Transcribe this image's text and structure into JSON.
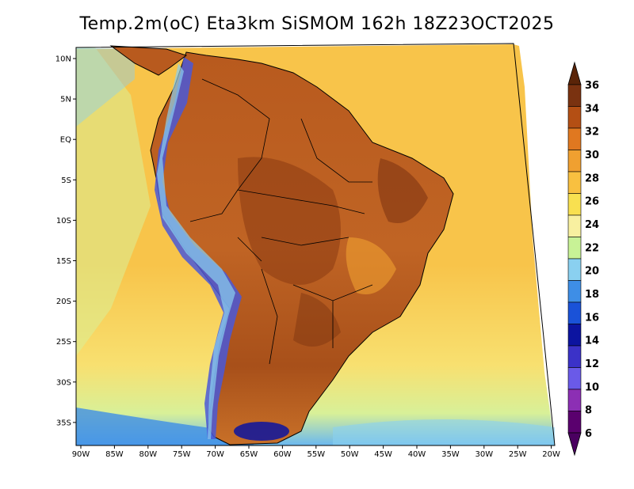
{
  "title": "Temp.2m(oC) Eta3km SiSMOM 162h 18Z23OCT2025",
  "map": {
    "variable": "2 m air temperature",
    "units": "oC",
    "region": "South America",
    "lat_range": [
      -38,
      12
    ],
    "lon_range": [
      -91,
      -19
    ],
    "y_tick_labels": [
      "10N",
      "5N",
      "EQ",
      "5S",
      "10S",
      "15S",
      "20S",
      "25S",
      "30S",
      "35S"
    ],
    "y_tick_values": [
      10,
      5,
      0,
      -5,
      -10,
      -15,
      -20,
      -25,
      -30,
      -35
    ],
    "x_tick_labels": [
      "90W",
      "85W",
      "80W",
      "75W",
      "70W",
      "65W",
      "60W",
      "55W",
      "50W",
      "45W",
      "40W",
      "35W",
      "30W",
      "25W",
      "20W"
    ],
    "x_tick_values": [
      -90,
      -85,
      -80,
      -75,
      -70,
      -65,
      -60,
      -55,
      -50,
      -45,
      -40,
      -35,
      -30,
      -25,
      -20
    ]
  },
  "colorbar": {
    "levels": [
      "6",
      "8",
      "10",
      "12",
      "14",
      "16",
      "18",
      "20",
      "22",
      "24",
      "26",
      "28",
      "30",
      "32",
      "34",
      "36"
    ],
    "colors": [
      "#5a006e",
      "#8c2fb4",
      "#6a5ae8",
      "#3b32c8",
      "#0c14a0",
      "#1a52d8",
      "#3e8ee6",
      "#8ad0f0",
      "#c8f296",
      "#f8f0a0",
      "#f8e050",
      "#f8c040",
      "#f0a030",
      "#e07820",
      "#b44f14",
      "#7a3210"
    ],
    "min_arrow_color": "#4a0060",
    "max_arrow_color": "#5a2408"
  },
  "colors": {
    "ocean_warm": "#f8c44a",
    "ocean_cool": "#f8e878",
    "land_hot": "#c06020",
    "land_very_hot": "#8a3a12",
    "andes_cold": "#4a58d8",
    "coastline": "#000000"
  }
}
